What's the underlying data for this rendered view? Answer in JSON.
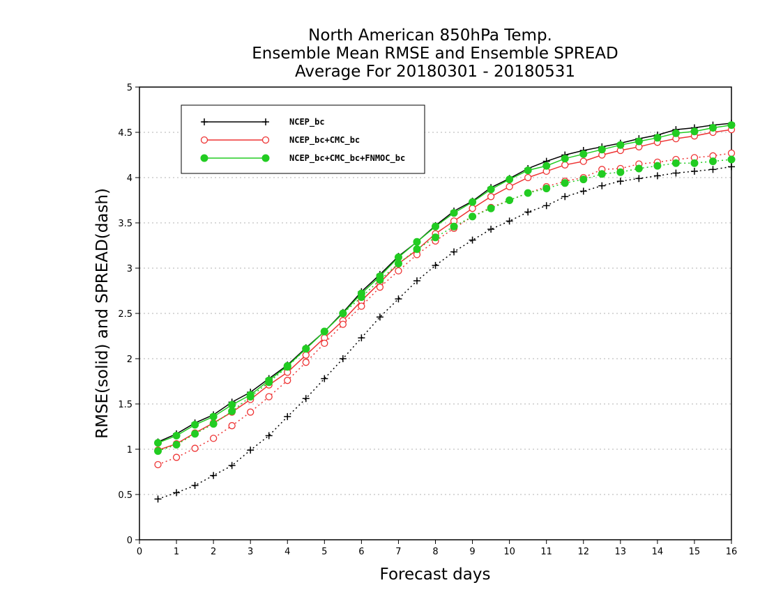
{
  "chart_data": {
    "type": "line",
    "title": [
      "North American 850hPa Temp.",
      "Ensemble Mean RMSE and Ensemble SPREAD",
      "Average For 20180301 - 20180531"
    ],
    "xlabel": "Forecast days",
    "ylabel": "RMSE(solid) and SPREAD(dash)",
    "xlim": [
      0,
      16
    ],
    "ylim": [
      0,
      5
    ],
    "xticks": [
      "0",
      "1",
      "2",
      "3",
      "4",
      "5",
      "6",
      "7",
      "8",
      "9",
      "10",
      "11",
      "12",
      "13",
      "14",
      "15",
      "16"
    ],
    "yticks": [
      "0",
      "0.5",
      "1",
      "1.5",
      "2",
      "2.5",
      "3",
      "3.5",
      "4",
      "4.5",
      "5"
    ],
    "grid": "horizontal dotted",
    "legend_position": "top-left",
    "x": [
      0.5,
      1,
      1.5,
      2,
      2.5,
      3,
      3.5,
      4,
      4.5,
      5,
      5.5,
      6,
      6.5,
      7,
      7.5,
      8,
      8.5,
      9,
      9.5,
      10,
      10.5,
      11,
      11.5,
      12,
      12.5,
      13,
      13.5,
      14,
      14.5,
      15,
      15.5,
      16
    ],
    "series": [
      {
        "name": "NCEP_bc",
        "color": "#000000",
        "marker": "plus",
        "rmse": [
          1.08,
          1.17,
          1.29,
          1.38,
          1.52,
          1.63,
          1.78,
          1.93,
          2.12,
          2.3,
          2.51,
          2.74,
          2.93,
          3.13,
          3.29,
          3.47,
          3.63,
          3.74,
          3.89,
          3.99,
          4.1,
          4.18,
          4.25,
          4.3,
          4.34,
          4.38,
          4.43,
          4.47,
          4.53,
          4.55,
          4.58,
          4.6
        ],
        "spread": [
          0.45,
          0.52,
          0.6,
          0.71,
          0.82,
          0.99,
          1.15,
          1.36,
          1.56,
          1.78,
          2.0,
          2.23,
          2.46,
          2.66,
          2.86,
          3.03,
          3.18,
          3.31,
          3.43,
          3.52,
          3.62,
          3.69,
          3.79,
          3.85,
          3.91,
          3.96,
          3.99,
          4.02,
          4.05,
          4.07,
          4.09,
          4.12
        ]
      },
      {
        "name": "NCEP_bc+CMC_bc",
        "color": "#ee3333",
        "marker": "open-circle",
        "rmse": [
          0.99,
          1.06,
          1.18,
          1.29,
          1.41,
          1.55,
          1.71,
          1.85,
          2.04,
          2.23,
          2.42,
          2.64,
          2.84,
          3.05,
          3.2,
          3.38,
          3.52,
          3.66,
          3.79,
          3.9,
          4.0,
          4.07,
          4.14,
          4.18,
          4.25,
          4.3,
          4.34,
          4.39,
          4.43,
          4.46,
          4.5,
          4.53
        ],
        "spread": [
          0.83,
          0.91,
          1.01,
          1.12,
          1.26,
          1.41,
          1.58,
          1.76,
          1.96,
          2.17,
          2.38,
          2.58,
          2.79,
          2.97,
          3.15,
          3.3,
          3.44,
          3.57,
          3.67,
          3.75,
          3.83,
          3.9,
          3.96,
          4.0,
          4.09,
          4.1,
          4.15,
          4.17,
          4.2,
          4.22,
          4.24,
          4.27
        ]
      },
      {
        "name": "NCEP_bc+CMC_bc+FNMOC_bc",
        "color": "#22cc22",
        "marker": "filled-circle",
        "rmse": [
          1.07,
          1.15,
          1.27,
          1.36,
          1.49,
          1.6,
          1.76,
          1.92,
          2.11,
          2.3,
          2.5,
          2.72,
          2.91,
          3.12,
          3.29,
          3.46,
          3.61,
          3.73,
          3.87,
          3.98,
          4.08,
          4.13,
          4.21,
          4.26,
          4.31,
          4.36,
          4.4,
          4.44,
          4.49,
          4.51,
          4.55,
          4.58
        ],
        "spread": [
          0.98,
          1.05,
          1.17,
          1.28,
          1.42,
          1.58,
          1.74,
          1.91,
          2.11,
          2.3,
          2.5,
          2.68,
          2.87,
          3.05,
          3.21,
          3.34,
          3.46,
          3.57,
          3.66,
          3.75,
          3.83,
          3.88,
          3.94,
          3.98,
          4.04,
          4.06,
          4.1,
          4.13,
          4.16,
          4.16,
          4.18,
          4.2
        ]
      }
    ]
  }
}
